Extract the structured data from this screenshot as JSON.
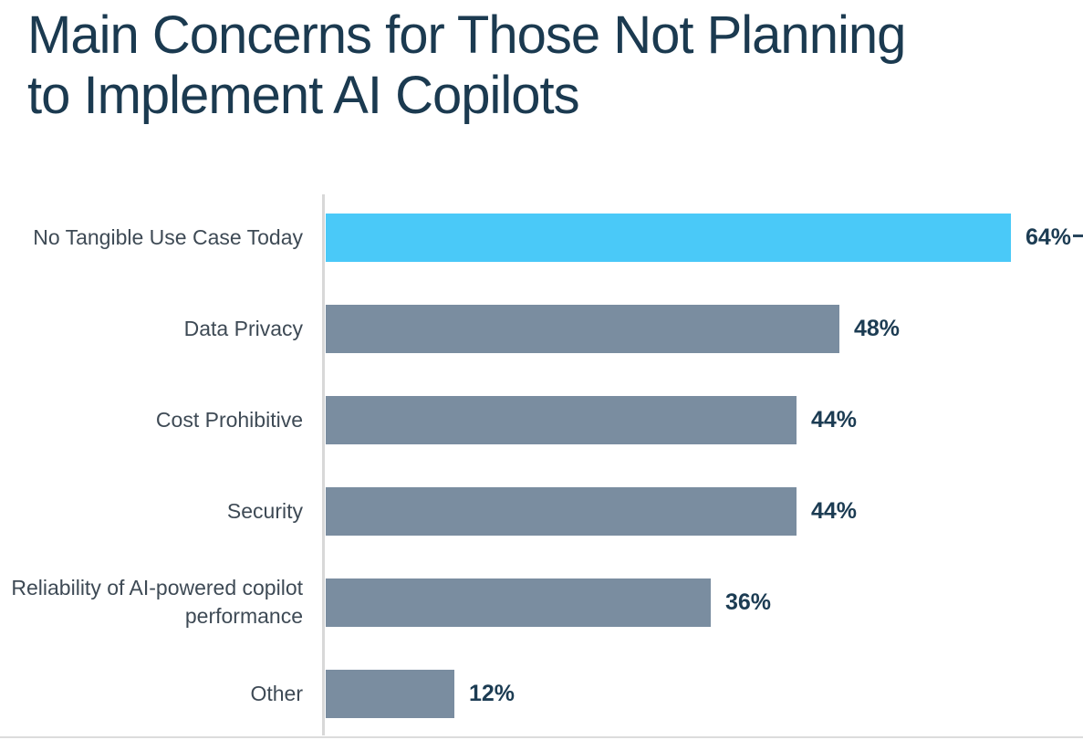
{
  "title": {
    "line1": "Main Concerns for Those Not Planning",
    "line2": "to Implement AI Copilots"
  },
  "colors": {
    "highlight_bar": "#4AC9F8",
    "default_bar": "#7A8DA0",
    "title_text": "#1B3A50",
    "category_label_text": "#3E4A55",
    "value_label_text": "#1C3C53",
    "axis_line": "#D8D8D8"
  },
  "chart_data": {
    "type": "bar",
    "orientation": "horizontal",
    "title": "Main Concerns for Those Not Planning to Implement AI Copilots",
    "categories": [
      "No Tangible Use Case Today",
      "Data Privacy",
      "Cost Prohibitive",
      "Security",
      "Reliability of AI-powered copilot performance",
      "Other"
    ],
    "values": [
      64,
      48,
      44,
      44,
      36,
      12
    ],
    "value_labels": [
      "64%",
      "48%",
      "44%",
      "44%",
      "36%",
      "12%"
    ],
    "unit": "%",
    "xlim": [
      0,
      71
    ],
    "grid": false,
    "legend": false,
    "axis_ticks_visible": false,
    "value_label_position": "right-of-bar",
    "highlight_index": 0,
    "bar_colors": [
      "#4AC9F8",
      "#7A8DA0",
      "#7A8DA0",
      "#7A8DA0",
      "#7A8DA0",
      "#7A8DA0"
    ]
  }
}
